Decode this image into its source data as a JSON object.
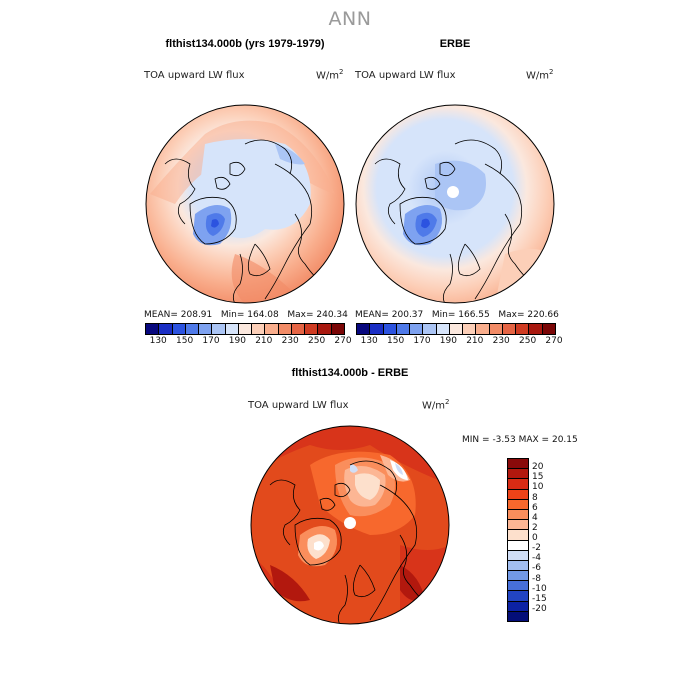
{
  "page_title": "ANN",
  "panels": {
    "model": {
      "title": "flthist134.000b (yrs 1979-1979)",
      "variable": "TOA upward LW flux",
      "units_base": "W/m",
      "units_exp": "2",
      "stats": {
        "mean_label": "MEAN=",
        "mean": "208.91",
        "min_label": "Min=",
        "min": "164.08",
        "max_label": "Max=",
        "max": "240.34"
      }
    },
    "obs": {
      "title": "ERBE",
      "variable": "TOA upward LW flux",
      "units_base": "W/m",
      "units_exp": "2",
      "stats": {
        "mean_label": "MEAN=",
        "mean": "200.37",
        "min_label": "Min=",
        "min": "166.55",
        "max_label": "Max=",
        "max": "220.66"
      }
    },
    "diff": {
      "title": "flthist134.000b - ERBE",
      "variable": "TOA upward LW flux",
      "units_base": "W/m",
      "units_exp": "2",
      "stats": {
        "min_label": "MIN =",
        "min": "-3.53",
        "max_label": "MAX =",
        "max": "20.15"
      }
    }
  },
  "colorbar_abs": {
    "labels": [
      "130",
      "150",
      "170",
      "190",
      "210",
      "230",
      "250",
      "270"
    ],
    "colors": [
      "#08087e",
      "#1a2ec4",
      "#2c53e0",
      "#4f7ae9",
      "#7ea2f0",
      "#abc5f5",
      "#d6e4fa",
      "#fbe8de",
      "#fccfb8",
      "#f9ae8d",
      "#f28b66",
      "#e56444",
      "#cf3b22",
      "#a8180f",
      "#7a0606"
    ]
  },
  "colorbar_diff": {
    "labels": [
      "20",
      "15",
      "10",
      "8",
      "6",
      "4",
      "2",
      "0",
      "-2",
      "-4",
      "-6",
      "-8",
      "-10",
      "-15",
      "-20"
    ],
    "colors": [
      "#8a0a0a",
      "#b2180e",
      "#d82b14",
      "#ee4318",
      "#f7682d",
      "#fa8e5c",
      "#fcb694",
      "#fde0cc",
      "#ffffff",
      "#d0def6",
      "#a2bef0",
      "#7299e6",
      "#476fd9",
      "#2244c2",
      "#0c22a4",
      "#040e78"
    ]
  }
}
